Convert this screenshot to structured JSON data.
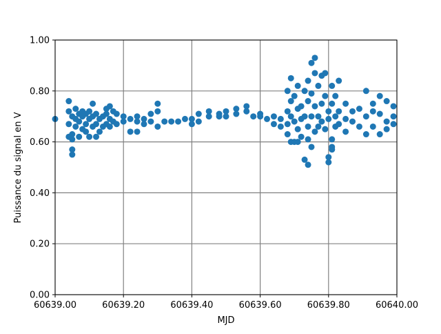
{
  "chart_data": {
    "type": "scatter",
    "xlabel": "MJD",
    "ylabel": "Puissance du signal en V",
    "color": "#1f77b4",
    "grid": true,
    "xlim": [
      60639.0,
      60640.0
    ],
    "xticks": [
      {
        "value": 60639.0,
        "label": "60639.00"
      },
      {
        "value": 60639.2,
        "label": "60639.20"
      },
      {
        "value": 60639.4,
        "label": "60639.40"
      },
      {
        "value": 60639.6,
        "label": "60639.60"
      },
      {
        "value": 60639.8,
        "label": "60639.80"
      },
      {
        "value": 60640.0,
        "label": "60640.00"
      }
    ],
    "ylim": [
      0,
      1
    ],
    "yticks": [
      {
        "value": 0,
        "label": "0.00"
      },
      {
        "value": 0.2,
        "label": "0.20"
      },
      {
        "value": 0.4,
        "label": "0.40"
      },
      {
        "value": 0.6,
        "label": "0.60"
      },
      {
        "value": 0.8,
        "label": "0.80"
      },
      {
        "value": 1,
        "label": "1.00"
      }
    ],
    "x": [
      60639.0,
      60639.04,
      60639.04,
      60639.04,
      60639.04,
      60639.05,
      60639.05,
      60639.05,
      60639.05,
      60639.05,
      60639.06,
      60639.06,
      60639.06,
      60639.07,
      60639.07,
      60639.07,
      60639.08,
      60639.08,
      60639.08,
      60639.09,
      60639.09,
      60639.09,
      60639.1,
      60639.1,
      60639.1,
      60639.11,
      60639.11,
      60639.11,
      60639.12,
      60639.12,
      60639.12,
      60639.13,
      60639.13,
      60639.14,
      60639.14,
      60639.15,
      60639.15,
      60639.15,
      60639.16,
      60639.16,
      60639.16,
      60639.17,
      60639.17,
      60639.18,
      60639.18,
      60639.2,
      60639.2,
      60639.22,
      60639.22,
      60639.24,
      60639.24,
      60639.24,
      60639.26,
      60639.26,
      60639.28,
      60639.28,
      60639.3,
      60639.3,
      60639.3,
      60639.32,
      60639.34,
      60639.36,
      60639.38,
      60639.4,
      60639.4,
      60639.42,
      60639.42,
      60639.45,
      60639.45,
      60639.48,
      60639.48,
      60639.5,
      60639.5,
      60639.53,
      60639.53,
      60639.56,
      60639.56,
      60639.58,
      60639.6,
      60639.6,
      60639.62,
      60639.64,
      60639.64,
      60639.66,
      60639.66,
      60639.68,
      60639.68,
      60639.68,
      60639.68,
      60639.69,
      60639.69,
      60639.69,
      60639.69,
      60639.7,
      60639.7,
      60639.7,
      60639.71,
      60639.71,
      60639.71,
      60639.71,
      60639.72,
      60639.72,
      60639.72,
      60639.73,
      60639.73,
      60639.73,
      60639.74,
      60639.74,
      60639.74,
      60639.74,
      60639.74,
      60639.75,
      60639.75,
      60639.75,
      60639.75,
      60639.76,
      60639.76,
      60639.76,
      60639.76,
      60639.77,
      60639.77,
      60639.77,
      60639.78,
      60639.78,
      60639.78,
      60639.79,
      60639.79,
      60639.79,
      60639.8,
      60639.8,
      60639.8,
      60639.8,
      60639.81,
      60639.81,
      60639.81,
      60639.81,
      60639.81,
      60639.82,
      60639.82,
      60639.82,
      60639.83,
      60639.83,
      60639.83,
      60639.85,
      60639.85,
      60639.85,
      60639.87,
      60639.87,
      60639.89,
      60639.89,
      60639.91,
      60639.91,
      60639.91,
      60639.93,
      60639.93,
      60639.93,
      60639.95,
      60639.95,
      60639.95,
      60639.97,
      60639.97,
      60639.97,
      60639.99,
      60639.99,
      60639.99
    ],
    "values": [
      0.69,
      0.76,
      0.72,
      0.67,
      0.62,
      0.55,
      0.57,
      0.61,
      0.63,
      0.7,
      0.66,
      0.69,
      0.73,
      0.62,
      0.68,
      0.71,
      0.72,
      0.65,
      0.7,
      0.64,
      0.67,
      0.71,
      0.62,
      0.69,
      0.72,
      0.75,
      0.66,
      0.7,
      0.62,
      0.67,
      0.71,
      0.64,
      0.69,
      0.66,
      0.7,
      0.67,
      0.71,
      0.73,
      0.66,
      0.69,
      0.74,
      0.68,
      0.72,
      0.67,
      0.71,
      0.68,
      0.7,
      0.64,
      0.69,
      0.64,
      0.68,
      0.7,
      0.67,
      0.69,
      0.68,
      0.71,
      0.66,
      0.72,
      0.75,
      0.68,
      0.68,
      0.68,
      0.69,
      0.67,
      0.69,
      0.68,
      0.71,
      0.7,
      0.72,
      0.71,
      0.7,
      0.7,
      0.72,
      0.71,
      0.73,
      0.74,
      0.72,
      0.7,
      0.7,
      0.71,
      0.69,
      0.67,
      0.7,
      0.66,
      0.69,
      0.8,
      0.72,
      0.63,
      0.67,
      0.85,
      0.76,
      0.6,
      0.7,
      0.78,
      0.68,
      0.6,
      0.82,
      0.73,
      0.65,
      0.6,
      0.74,
      0.69,
      0.62,
      0.8,
      0.53,
      0.7,
      0.84,
      0.76,
      0.51,
      0.66,
      0.61,
      0.91,
      0.79,
      0.58,
      0.7,
      0.93,
      0.87,
      0.74,
      0.64,
      0.82,
      0.7,
      0.66,
      0.86,
      0.75,
      0.68,
      0.87,
      0.78,
      0.65,
      0.54,
      0.52,
      0.72,
      0.69,
      0.82,
      0.75,
      0.61,
      0.57,
      0.58,
      0.7,
      0.66,
      0.78,
      0.84,
      0.72,
      0.67,
      0.75,
      0.69,
      0.64,
      0.72,
      0.68,
      0.73,
      0.66,
      0.63,
      0.7,
      0.8,
      0.66,
      0.72,
      0.75,
      0.78,
      0.63,
      0.71,
      0.76,
      0.68,
      0.65,
      0.74,
      0.7,
      0.67
    ]
  }
}
